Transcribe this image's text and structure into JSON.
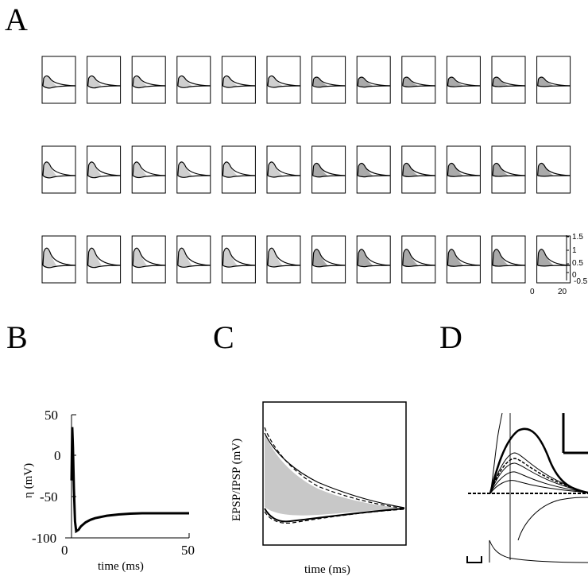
{
  "panels": {
    "A": "A",
    "B": "B",
    "C": "C",
    "D": "D"
  },
  "panel_a": {
    "rows": 3,
    "cols": 12,
    "ytick_labels": [
      "1.5",
      "1",
      "0.5",
      "0",
      "-0.5"
    ],
    "xtick_labels": [
      "0",
      "20"
    ]
  },
  "panel_b": {
    "ylabel": "η (mV)",
    "xlabel": "time (ms)",
    "ytick_labels": [
      "50",
      "0",
      "-50",
      "-100"
    ],
    "xtick_labels": [
      "0",
      "50"
    ]
  },
  "panel_c": {
    "ylabel": "EPSP/IPSP (mV)",
    "xlabel": "time (ms)"
  },
  "chart_data": [
    {
      "type": "line",
      "panel": "B",
      "xlabel": "time (ms)",
      "ylabel": "η (mV)",
      "xlim": [
        0,
        50
      ],
      "ylim": [
        -100,
        50
      ],
      "series": [
        {
          "x": [
            0,
            0.3,
            0.6,
            1,
            1.5,
            2,
            3,
            4,
            6,
            8,
            10,
            15,
            20,
            25,
            30,
            40,
            50
          ],
          "values": [
            -30,
            35,
            10,
            -40,
            -80,
            -92,
            -90,
            -86,
            -81,
            -78,
            -76,
            -73,
            -71.5,
            -70.5,
            -70,
            -70,
            -70
          ]
        }
      ]
    }
  ]
}
